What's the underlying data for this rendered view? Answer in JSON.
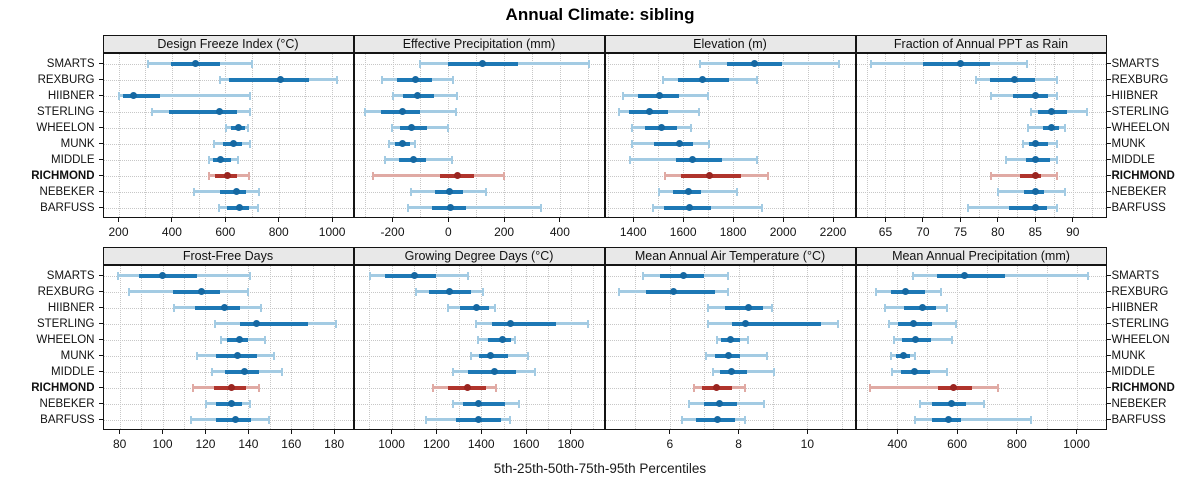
{
  "title": "Annual Climate: sibling",
  "caption": "5th-25th-50th-75th-95th Percentiles",
  "highlight_station": "RICHMOND",
  "colors": {
    "series_blue": "#1d78b5",
    "series_blue_light": "#a3cbe3",
    "series_red": "#b0342c",
    "series_red_light": "#e0aaa4",
    "dot_blue": "#1568a2",
    "dot_red": "#9a2520",
    "grid": "#c7c7c7",
    "strip_bg": "#e8e8e8",
    "border": "#141414",
    "text": "#111111"
  },
  "chart_data": {
    "type": "dotplot-trellis",
    "percentiles": [
      5,
      25,
      50,
      75,
      95
    ],
    "stations": [
      "SMARTS",
      "REXBURG",
      "HIIBNER",
      "STERLING",
      "WHEELON",
      "MUNK",
      "MIDDLE",
      "RICHMOND",
      "NEBEKER",
      "BARFUSS"
    ],
    "grid": "dotted",
    "panels": [
      {
        "title": "Design Freeze Index (°C)",
        "xlim": [
          140,
          1080
        ],
        "minor_step": 100,
        "tick_values": [
          200,
          400,
          600,
          800,
          1000
        ],
        "tick_labels": [
          "200",
          "400",
          "600",
          "800",
          "1000"
        ],
        "values": {
          "SMARTS": [
            310,
            395,
            490,
            580,
            700
          ],
          "REXBURG": [
            580,
            615,
            805,
            915,
            1020
          ],
          "HIIBNER": [
            200,
            215,
            255,
            355,
            695
          ],
          "STERLING": [
            325,
            390,
            580,
            645,
            695
          ],
          "WHEELON": [
            600,
            620,
            648,
            672,
            685
          ],
          "MUNK": [
            555,
            590,
            632,
            663,
            695
          ],
          "MIDDLE": [
            538,
            552,
            582,
            620,
            650
          ],
          "RICHMOND": [
            538,
            562,
            608,
            645,
            690
          ],
          "NEBEKER": [
            480,
            580,
            642,
            678,
            727
          ],
          "BARFUSS": [
            573,
            605,
            652,
            690,
            724
          ]
        }
      },
      {
        "title": "Effective Precipitation (mm)",
        "xlim": [
          -340,
          560
        ],
        "minor_step": 100,
        "tick_values": [
          -200,
          0,
          200,
          400
        ],
        "tick_labels": [
          "-200",
          "0",
          "200",
          "400"
        ],
        "values": {
          "SMARTS": [
            -103,
            0,
            124,
            250,
            505
          ],
          "REXBURG": [
            -240,
            -185,
            -118,
            -60,
            20
          ],
          "HIIBNER": [
            -200,
            -164,
            -110,
            -51,
            33
          ],
          "STERLING": [
            -300,
            -242,
            -164,
            -100,
            28
          ],
          "WHEELON": [
            -204,
            -173,
            -131,
            -75,
            0
          ],
          "MUNK": [
            -215,
            -190,
            -164,
            -137,
            -119
          ],
          "MIDDLE": [
            -230,
            -176,
            -124,
            -79,
            16
          ],
          "RICHMOND": [
            -273,
            -30,
            34,
            91,
            200
          ],
          "NEBEKER": [
            -136,
            -48,
            4,
            52,
            137
          ],
          "BARFUSS": [
            -145,
            -60,
            8,
            64,
            335
          ]
        }
      },
      {
        "title": "Elevation (m)",
        "xlim": [
          1285,
          2290
        ],
        "minor_step": 100,
        "tick_values": [
          1400,
          1600,
          1800,
          2000,
          2200
        ],
        "tick_labels": [
          "1400",
          "1600",
          "1800",
          "2000",
          "2200"
        ],
        "values": {
          "SMARTS": [
            1665,
            1775,
            1885,
            1995,
            2225
          ],
          "REXBURG": [
            1517,
            1580,
            1676,
            1784,
            1897
          ],
          "HIIBNER": [
            1357,
            1420,
            1507,
            1583,
            1700
          ],
          "STERLING": [
            1340,
            1383,
            1464,
            1540,
            1667
          ],
          "WHEELON": [
            1393,
            1447,
            1513,
            1576,
            1633
          ],
          "MUNK": [
            1393,
            1484,
            1584,
            1640,
            1707
          ],
          "MIDDLE": [
            1387,
            1573,
            1637,
            1757,
            1896
          ],
          "RICHMOND": [
            1527,
            1590,
            1705,
            1833,
            1940
          ],
          "NEBEKER": [
            1500,
            1560,
            1620,
            1670,
            1816
          ],
          "BARFUSS": [
            1477,
            1524,
            1627,
            1713,
            1917
          ]
        }
      },
      {
        "title": "Fraction of Annual PPT as Rain",
        "xlim": [
          61,
          94.5
        ],
        "minor_step": 2.5,
        "tick_values": [
          65,
          70,
          75,
          80,
          85,
          90
        ],
        "tick_labels": [
          "65",
          "70",
          "75",
          "80",
          "85",
          "90"
        ],
        "values": {
          "SMARTS": [
            63,
            70,
            75,
            79,
            84
          ],
          "REXBURG": [
            77,
            79,
            82.2,
            85,
            88
          ],
          "HIIBNER": [
            79,
            82,
            85,
            86.7,
            88
          ],
          "STERLING": [
            84.4,
            85.4,
            87.1,
            89.2,
            92
          ],
          "WHEELON": [
            84,
            86,
            87.2,
            88.2,
            89
          ],
          "MUNK": [
            83.3,
            84.2,
            85,
            86.7,
            88
          ],
          "MIDDLE": [
            81,
            83.8,
            85,
            86.9,
            88
          ],
          "RICHMOND": [
            79,
            83,
            85,
            85.8,
            88
          ],
          "NEBEKER": [
            80,
            83.5,
            85,
            86.1,
            89
          ],
          "BARFUSS": [
            76,
            81.5,
            85,
            86.5,
            88
          ]
        }
      },
      {
        "title": "Frost-Free Days",
        "xlim": [
          72,
          189
        ],
        "minor_step": 10,
        "tick_values": [
          80,
          100,
          120,
          140,
          160,
          180
        ],
        "tick_labels": [
          "80",
          "100",
          "120",
          "140",
          "160",
          "180"
        ],
        "values": {
          "SMARTS": [
            79,
            89,
            100,
            116,
            141
          ],
          "REXBURG": [
            84,
            105,
            118,
            127,
            140
          ],
          "HIIBNER": [
            105,
            115,
            129,
            136,
            146
          ],
          "STERLING": [
            124,
            136,
            144,
            168,
            181
          ],
          "WHEELON": [
            127,
            130,
            136,
            140,
            148
          ],
          "MUNK": [
            116,
            125,
            135,
            144,
            152
          ],
          "MIDDLE": [
            123,
            129,
            138,
            145,
            156
          ],
          "RICHMOND": [
            114,
            124,
            132,
            139,
            145
          ],
          "NEBEKER": [
            120,
            125,
            132,
            137,
            141
          ],
          "BARFUSS": [
            113,
            125,
            134,
            141,
            150
          ]
        }
      },
      {
        "title": "Growing Degree Days (°C)",
        "xlim": [
          830,
          1950
        ],
        "minor_step": 100,
        "tick_values": [
          1000,
          1200,
          1400,
          1600,
          1800
        ],
        "tick_labels": [
          "1000",
          "1200",
          "1400",
          "1600",
          "1800"
        ],
        "values": {
          "SMARTS": [
            900,
            970,
            1100,
            1200,
            1345
          ],
          "REXBURG": [
            1105,
            1165,
            1260,
            1355,
            1410
          ],
          "HIIBNER": [
            1250,
            1305,
            1378,
            1435,
            1465
          ],
          "STERLING": [
            1375,
            1450,
            1530,
            1735,
            1880
          ],
          "WHEELON": [
            1385,
            1430,
            1493,
            1535,
            1552
          ],
          "MUNK": [
            1350,
            1390,
            1440,
            1520,
            1612
          ],
          "MIDDLE": [
            1270,
            1340,
            1460,
            1555,
            1640
          ],
          "RICHMOND": [
            1182,
            1252,
            1338,
            1422,
            1470
          ],
          "NEBEKER": [
            1270,
            1320,
            1388,
            1505,
            1570
          ],
          "BARFUSS": [
            1153,
            1289,
            1388,
            1486,
            1529
          ]
        }
      },
      {
        "title": "Mean Annual Air Temperature (°C)",
        "xlim": [
          4.1,
          11.4
        ],
        "minor_step": 1,
        "tick_values": [
          6,
          8,
          10
        ],
        "tick_labels": [
          "6",
          "8",
          "10"
        ],
        "values": {
          "SMARTS": [
            5.2,
            5.7,
            6.4,
            7.0,
            7.7
          ],
          "REXBURG": [
            4.5,
            5.3,
            6.1,
            7.3,
            7.7
          ],
          "HIIBNER": [
            7.1,
            7.6,
            8.3,
            8.7,
            9.0
          ],
          "STERLING": [
            7.1,
            7.8,
            8.2,
            10.4,
            10.9
          ],
          "WHEELON": [
            7.35,
            7.5,
            7.75,
            8.05,
            8.3
          ],
          "MUNK": [
            7.05,
            7.3,
            7.7,
            8.05,
            8.85
          ],
          "MIDDLE": [
            7.25,
            7.45,
            7.8,
            8.25,
            9.05
          ],
          "RICHMOND": [
            6.7,
            6.95,
            7.35,
            7.8,
            8.2
          ],
          "NEBEKER": [
            6.55,
            7.0,
            7.45,
            7.95,
            8.75
          ],
          "BARFUSS": [
            6.35,
            6.75,
            7.4,
            7.9,
            8.2
          ]
        }
      },
      {
        "title": "Mean Annual Precipitation (mm)",
        "xlim": [
          260,
          1100
        ],
        "minor_step": 100,
        "tick_values": [
          400,
          600,
          800,
          1000
        ],
        "tick_labels": [
          "400",
          "600",
          "800",
          "1000"
        ],
        "values": {
          "SMARTS": [
            450,
            533,
            624,
            760,
            1039
          ],
          "REXBURG": [
            328,
            380,
            427,
            494,
            547
          ],
          "HIIBNER": [
            356,
            421,
            483,
            530,
            569
          ],
          "STERLING": [
            369,
            402,
            454,
            516,
            597
          ],
          "WHEELON": [
            386,
            417,
            461,
            513,
            583
          ],
          "MUNK": [
            378,
            394,
            419,
            443,
            461
          ],
          "MIDDLE": [
            380,
            411,
            458,
            508,
            569
          ],
          "RICHMOND": [
            306,
            536,
            588,
            650,
            739
          ],
          "NEBEKER": [
            474,
            517,
            582,
            630,
            691
          ],
          "BARFUSS": [
            456,
            517,
            572,
            613,
            850
          ]
        }
      }
    ]
  }
}
